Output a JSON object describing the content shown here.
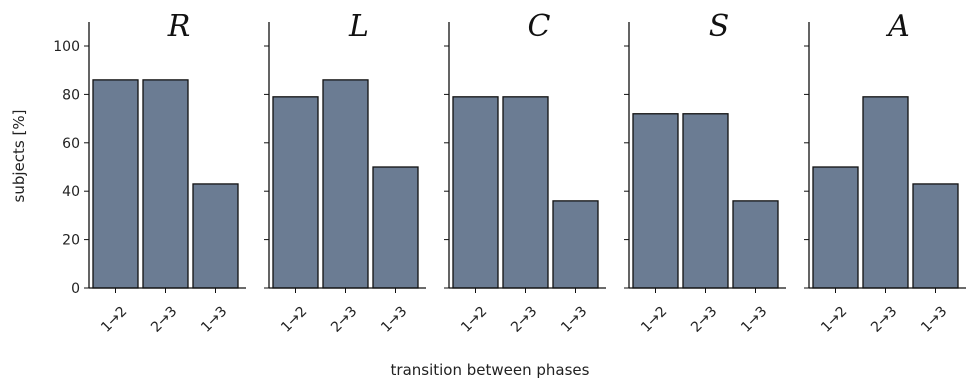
{
  "chart_data": {
    "type": "bar",
    "ylabel": "subjects [%]",
    "xlabel": "transition between phases",
    "ylim": [
      0,
      110
    ],
    "yticks": [
      0,
      20,
      40,
      60,
      80,
      100
    ],
    "categories": [
      "1→2",
      "2→3",
      "1→3"
    ],
    "panels": [
      {
        "title": "R",
        "values": [
          86,
          86,
          43
        ]
      },
      {
        "title": "L",
        "values": [
          79,
          86,
          50
        ]
      },
      {
        "title": "C",
        "values": [
          79,
          79,
          36
        ]
      },
      {
        "title": "S",
        "values": [
          72,
          72,
          36
        ]
      },
      {
        "title": "A",
        "values": [
          50,
          79,
          43
        ]
      }
    ],
    "bar_color": "#6b7c93",
    "grid": false,
    "legend": "none"
  }
}
